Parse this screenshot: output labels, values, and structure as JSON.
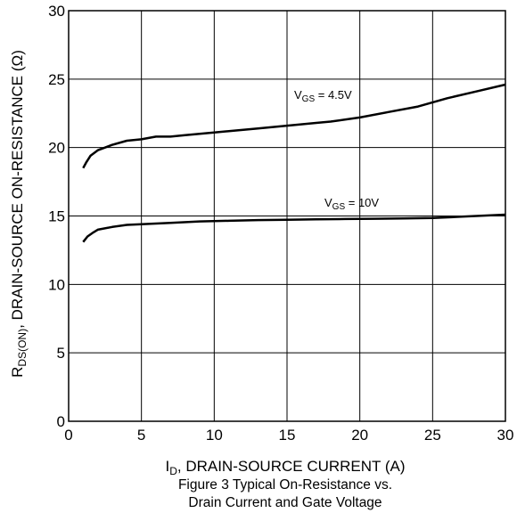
{
  "chart_data": {
    "type": "line",
    "xlabel": {
      "main": "I",
      "sub": "D",
      "rest": ", DRAIN-SOURCE CURRENT (A)"
    },
    "ylabel": {
      "main": "R",
      "sub": "DS(ON)",
      "rest": ",  DRAIN-SOURCE ON-RESISTANCE (Ω)"
    },
    "caption": [
      "Figure 3 Typical On-Resistance vs.",
      "Drain Current and Gate Voltage"
    ],
    "xlim": [
      0,
      30
    ],
    "ylim": [
      0,
      30
    ],
    "xticks": [
      "0",
      "5",
      "10",
      "15",
      "20",
      "25",
      "30"
    ],
    "yticks": [
      "0",
      "5",
      "10",
      "15",
      "20",
      "25",
      "30"
    ],
    "grid": true,
    "series": [
      {
        "name": {
          "main": "V",
          "sub": "GS",
          "rest": " = 4.5V"
        },
        "color": "#000000",
        "points": [
          [
            1.0,
            18.5
          ],
          [
            1.2,
            18.9
          ],
          [
            1.5,
            19.4
          ],
          [
            2.0,
            19.8
          ],
          [
            2.5,
            20.0
          ],
          [
            3,
            20.2
          ],
          [
            4,
            20.5
          ],
          [
            5,
            20.6
          ],
          [
            6,
            20.8
          ],
          [
            7,
            20.8
          ],
          [
            8,
            20.9
          ],
          [
            9,
            21.0
          ],
          [
            10,
            21.1
          ],
          [
            11,
            21.2
          ],
          [
            12,
            21.3
          ],
          [
            13,
            21.4
          ],
          [
            15,
            21.6
          ],
          [
            17,
            21.8
          ],
          [
            18,
            21.9
          ],
          [
            20,
            22.2
          ],
          [
            22,
            22.6
          ],
          [
            24,
            23.0
          ],
          [
            26,
            23.6
          ],
          [
            28,
            24.1
          ],
          [
            30,
            24.6
          ]
        ]
      },
      {
        "name": {
          "main": "V",
          "sub": "GS",
          "rest": " = 10V"
        },
        "color": "#000000",
        "points": [
          [
            1.0,
            13.1
          ],
          [
            1.3,
            13.5
          ],
          [
            1.7,
            13.8
          ],
          [
            2,
            14.0
          ],
          [
            3,
            14.2
          ],
          [
            4,
            14.35
          ],
          [
            5,
            14.4
          ],
          [
            7,
            14.5
          ],
          [
            9,
            14.6
          ],
          [
            11,
            14.65
          ],
          [
            13,
            14.7
          ],
          [
            15,
            14.72
          ],
          [
            17,
            14.75
          ],
          [
            19,
            14.78
          ],
          [
            21,
            14.8
          ],
          [
            23,
            14.82
          ],
          [
            25,
            14.85
          ],
          [
            27,
            14.95
          ],
          [
            30,
            15.1
          ]
        ]
      }
    ]
  }
}
